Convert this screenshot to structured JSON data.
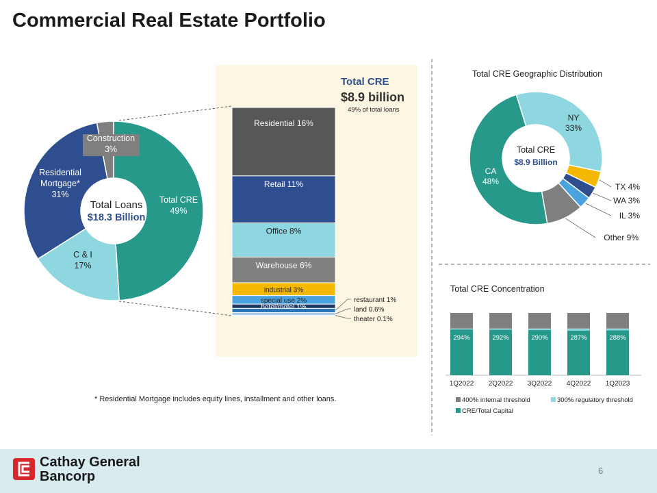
{
  "title": "Commercial Real Estate Portfolio",
  "footnote": "* Residential Mortgage includes equity lines, installment and other loans.",
  "footer": {
    "company_line1": "Cathay General",
    "company_line2": "Bancorp",
    "page_number": "6"
  },
  "colors": {
    "teal": "#27998a",
    "navy": "#2e4e8f",
    "light_blue": "#8ed7e0",
    "gray": "#7f7f7f",
    "dark_gray": "#575757",
    "gold": "#f5b800",
    "sky": "#4aa3df",
    "cream": "#fdf6e3",
    "footer_bg": "#d8ecf0",
    "brand_red": "#d7262c"
  },
  "chart_data": [
    {
      "type": "pie",
      "variant": "donut",
      "title": "Total Loans",
      "center_label": "Total Loans",
      "center_value": "$18.3 Billion",
      "slices": [
        {
          "name": "Total CRE",
          "value": 49,
          "label": "49%"
        },
        {
          "name": "C & I",
          "value": 17,
          "label": "17%"
        },
        {
          "name": "Residential Mortgage*",
          "value": 31,
          "label": "31%"
        },
        {
          "name": "Construction",
          "value": 3,
          "label": "3%"
        }
      ],
      "name_lines": {
        "Residential Mortgage*": [
          "Residential",
          "Mortgage*"
        ]
      }
    },
    {
      "type": "bar",
      "variant": "stacked-100",
      "title": "Total CRE",
      "value_text": "$8.9 billion",
      "subtitle": "49% of total loans",
      "segments": [
        {
          "name": "Residential",
          "value": 16,
          "label": "16%"
        },
        {
          "name": "Retail",
          "value": 11,
          "label": "11%"
        },
        {
          "name": "Office",
          "value": 8,
          "label": "8%"
        },
        {
          "name": "Warehouse",
          "value": 6,
          "label": "6%"
        },
        {
          "name": "industrial",
          "value": 3,
          "label": "3%"
        },
        {
          "name": "special use",
          "value": 2,
          "label": "2%"
        },
        {
          "name": "hotel/motel",
          "value": 1,
          "label": "1%"
        },
        {
          "name": "restaurant",
          "value": 1,
          "label": "1%"
        },
        {
          "name": "land",
          "value": 0.6,
          "label": "0.6%"
        },
        {
          "name": "theater",
          "value": 0.1,
          "label": "0.1%"
        }
      ]
    },
    {
      "type": "pie",
      "variant": "donut",
      "title": "Total CRE Geographic Distribution",
      "center_label": "Total CRE",
      "center_value": "$8.9 Billion",
      "slices": [
        {
          "name": "NY",
          "value": 33,
          "label": "33%"
        },
        {
          "name": "TX",
          "value": 4,
          "label": "4%"
        },
        {
          "name": "WA",
          "value": 3,
          "label": "3%"
        },
        {
          "name": "IL",
          "value": 3,
          "label": "3%"
        },
        {
          "name": "Other",
          "value": 9,
          "label": "9%"
        },
        {
          "name": "CA",
          "value": 48,
          "label": "48%"
        }
      ]
    },
    {
      "type": "bar",
      "variant": "stacked",
      "title": "Total CRE Concentration",
      "categories": [
        "1Q2022",
        "2Q2022",
        "3Q2022",
        "4Q2022",
        "1Q2023"
      ],
      "ylim": [
        0,
        400
      ],
      "series": [
        {
          "name": "CRE/Total Capital",
          "values": [
            294,
            292,
            290,
            287,
            288
          ],
          "labels": [
            "294%",
            "292%",
            "290%",
            "287%",
            "288%"
          ]
        },
        {
          "name": "300% regulatory threshold",
          "values": [
            300,
            300,
            300,
            300,
            300
          ]
        },
        {
          "name": "400% internal threshold",
          "values": [
            400,
            400,
            400,
            400,
            400
          ]
        }
      ],
      "legend": [
        "400% internal threshold",
        "300% regulatory threshold",
        "CRE/Total Capital"
      ]
    }
  ]
}
